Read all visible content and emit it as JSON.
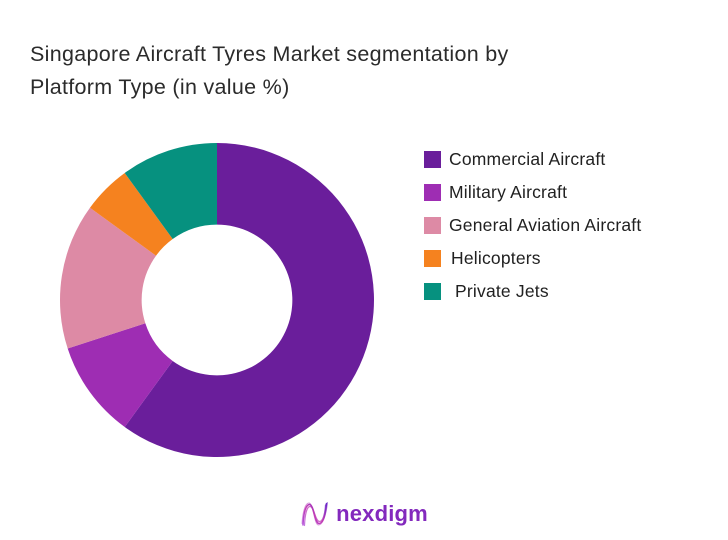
{
  "header": {
    "title_line1": "Singapore Aircraft Tyres Market segmentation by",
    "title_line2": "Platform Type (in value %)"
  },
  "chart_data": {
    "type": "pie",
    "subtype": "donut",
    "title": "Singapore Aircraft Tyres Market segmentation by Platform Type (in value %)",
    "value_unit": "%",
    "start_angle_deg": 0,
    "direction": "clockwise",
    "inner_radius_ratio": 0.48,
    "legend_position": "right",
    "background_color": "#ffffff",
    "slices": [
      {
        "label": "Commercial Aircraft",
        "value": 60,
        "color": "#6A1E9B"
      },
      {
        "label": "Military Aircraft",
        "value": 10,
        "color": "#9E2DB3"
      },
      {
        "label": "General Aviation Aircraft",
        "value": 15,
        "color": "#DD8AA5"
      },
      {
        "label": "Helicopters",
        "value": 5,
        "color": "#F5821F"
      },
      {
        "label": "Private Jets",
        "value": 10,
        "color": "#06917F"
      }
    ]
  },
  "footer": {
    "brand": "nexdigm",
    "brand_color": "#8329BD"
  }
}
